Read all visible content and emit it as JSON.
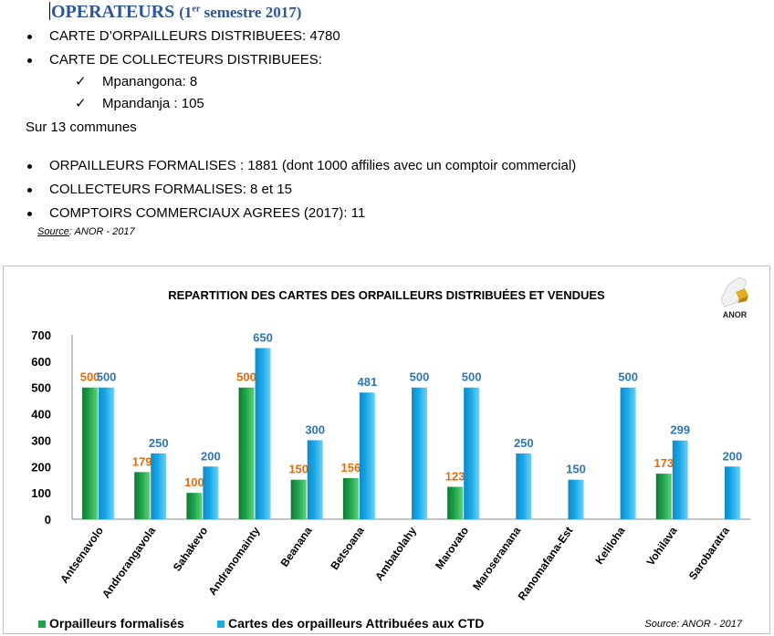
{
  "header": {
    "title_main": "OPERATEURS",
    "title_paren_open": "(1",
    "title_sup": "er",
    "title_paren_rest": " semestre 2017)"
  },
  "bullets_top": [
    "CARTE D’ORPAILLEURS DISTRIBUEES: 4780",
    "CARTE DE COLLECTEURS DISTRIBUEES:"
  ],
  "sub_items": [
    "Mpanangona: 8",
    "Mpandanja : 105"
  ],
  "communes_note": "Sur 13 communes",
  "bullets_bottom": [
    "ORPAILLEURS FORMALISES : 1881 (dont 1000 affilies avec  un comptoir commercial)",
    "COLLECTEURS FORMALISES: 8 et 15",
    "COMPTOIRS COMMERCIAUX AGREES (2017):   11"
  ],
  "source_top": {
    "label": "Source",
    "rest": ": ANOR - 2017"
  },
  "logo_text": "ANOR",
  "chart_data": {
    "type": "bar",
    "title": "REPARTITION DES  CARTES DES ORPAILLEURS DISTRIBUÉES ET VENDUES",
    "categories": [
      "Antsenavolo",
      "Androrangavola",
      "Sahakevo",
      "Andranomainty",
      "Beanana",
      "Betsoana",
      "Ambatolahy",
      "Marovato",
      "Maroseranana",
      "Ranomafana-Est",
      "Keliloha",
      "Vohilava",
      "Sarobaratra"
    ],
    "series": [
      {
        "name": "Orpailleurs formalisés",
        "color": "#1fa34a",
        "values": [
          500,
          179,
          100,
          500,
          150,
          156,
          null,
          123,
          null,
          null,
          null,
          173,
          null
        ]
      },
      {
        "name": "Cartes des orpailleurs Attribuées aux CTD",
        "color": "#19a8e8",
        "values": [
          500,
          250,
          200,
          650,
          300,
          481,
          500,
          500,
          250,
          150,
          500,
          299,
          200
        ]
      }
    ],
    "label_colors": [
      "#e46c0a",
      "#2e75b6"
    ],
    "ylim": [
      0,
      700
    ],
    "yticks": [
      0,
      100,
      200,
      300,
      400,
      500,
      600,
      700
    ],
    "legend_position": "bottom-left"
  },
  "source_bottom": "Source: ANOR - 2017"
}
